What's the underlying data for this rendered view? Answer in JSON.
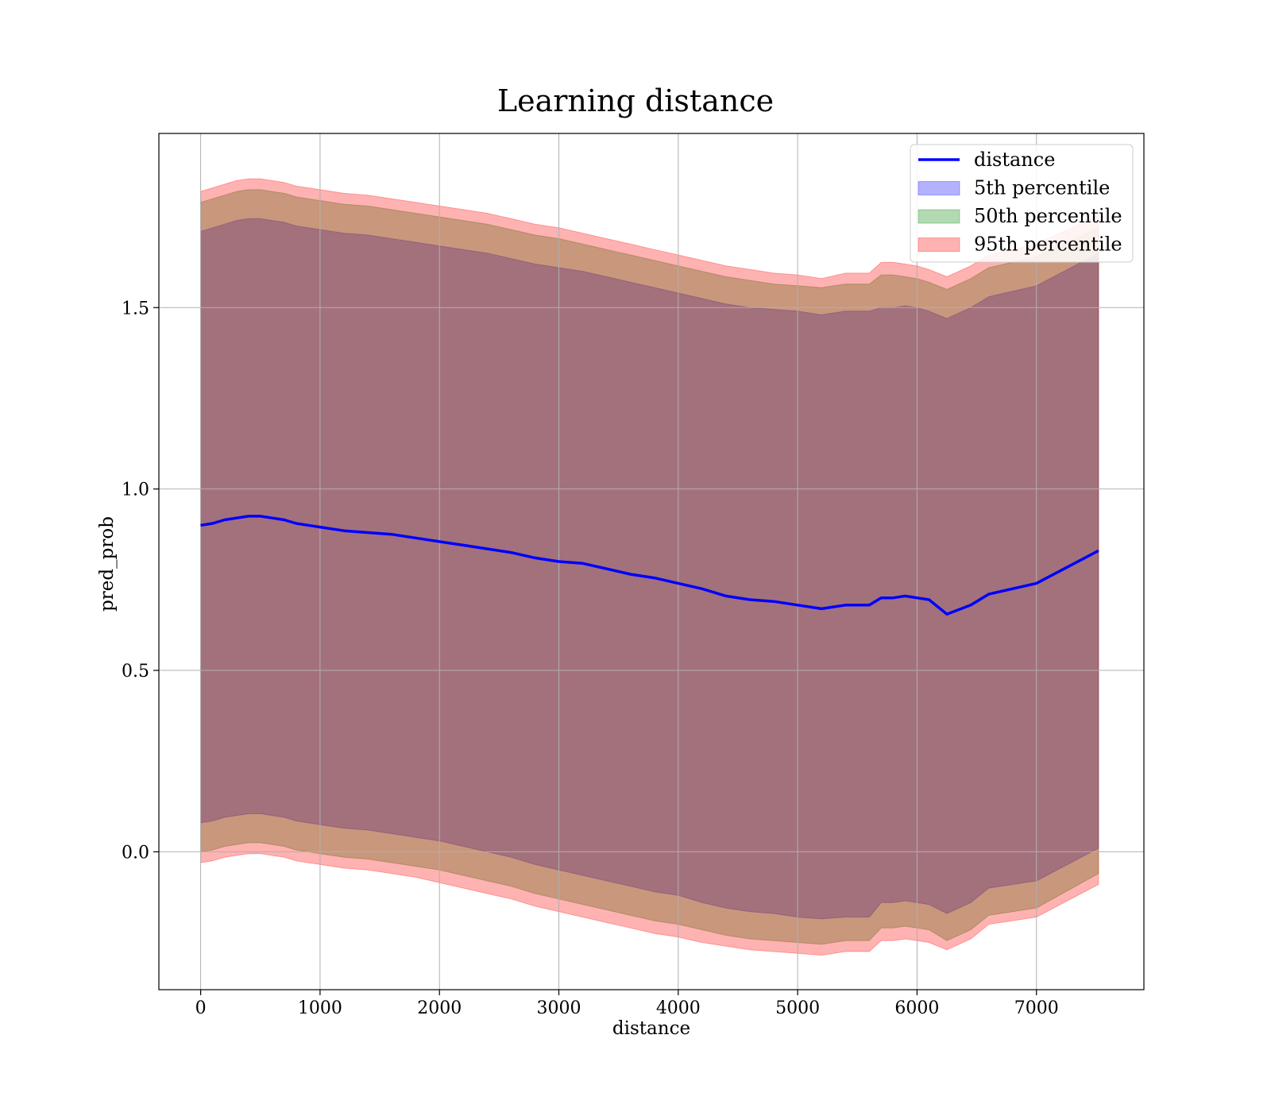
{
  "chart_data": {
    "type": "area",
    "title": "Learning distance",
    "xlabel": "distance",
    "ylabel": "pred_prob",
    "xlim": [
      -350,
      7900
    ],
    "ylim": [
      -0.38,
      1.98
    ],
    "xticks": [
      0,
      1000,
      2000,
      3000,
      4000,
      5000,
      6000,
      7000
    ],
    "xtick_labels": [
      "0",
      "1000",
      "2000",
      "3000",
      "4000",
      "5000",
      "6000",
      "7000"
    ],
    "yticks": [
      0.0,
      0.5,
      1.0,
      1.5
    ],
    "ytick_labels": [
      "0.0",
      "0.5",
      "1.0",
      "1.5"
    ],
    "grid": true,
    "legend_position": "upper right",
    "x": [
      0,
      100,
      200,
      300,
      400,
      500,
      600,
      700,
      800,
      900,
      1000,
      1200,
      1400,
      1600,
      1800,
      2000,
      2200,
      2400,
      2600,
      2800,
      3000,
      3200,
      3400,
      3600,
      3800,
      4000,
      4200,
      4400,
      4600,
      4800,
      5000,
      5200,
      5400,
      5600,
      5700,
      5800,
      5900,
      6000,
      6100,
      6250,
      6450,
      6600,
      7000,
      7520
    ],
    "series": [
      {
        "name": "distance",
        "kind": "line",
        "color": "#0000ff",
        "y": [
          0.9,
          0.905,
          0.915,
          0.92,
          0.925,
          0.925,
          0.92,
          0.915,
          0.905,
          0.9,
          0.895,
          0.885,
          0.88,
          0.875,
          0.865,
          0.855,
          0.845,
          0.835,
          0.825,
          0.81,
          0.8,
          0.795,
          0.78,
          0.765,
          0.755,
          0.74,
          0.725,
          0.705,
          0.695,
          0.69,
          0.68,
          0.67,
          0.68,
          0.68,
          0.7,
          0.7,
          0.705,
          0.7,
          0.695,
          0.655,
          0.68,
          0.71,
          0.74,
          0.83
        ]
      },
      {
        "name": "5th percentile",
        "kind": "band",
        "color": "#0000ff",
        "opacity": 0.3,
        "lower": [
          0.08,
          0.085,
          0.095,
          0.1,
          0.105,
          0.105,
          0.1,
          0.095,
          0.085,
          0.08,
          0.075,
          0.065,
          0.06,
          0.05,
          0.04,
          0.03,
          0.015,
          0.0,
          -0.015,
          -0.035,
          -0.05,
          -0.065,
          -0.08,
          -0.095,
          -0.11,
          -0.12,
          -0.14,
          -0.155,
          -0.165,
          -0.17,
          -0.18,
          -0.185,
          -0.18,
          -0.18,
          -0.14,
          -0.14,
          -0.135,
          -0.14,
          -0.145,
          -0.17,
          -0.14,
          -0.1,
          -0.08,
          0.01
        ],
        "upper": [
          1.71,
          1.72,
          1.73,
          1.74,
          1.745,
          1.745,
          1.74,
          1.735,
          1.725,
          1.72,
          1.715,
          1.705,
          1.7,
          1.69,
          1.68,
          1.67,
          1.66,
          1.65,
          1.635,
          1.62,
          1.61,
          1.6,
          1.585,
          1.57,
          1.555,
          1.54,
          1.525,
          1.51,
          1.5,
          1.495,
          1.49,
          1.48,
          1.49,
          1.49,
          1.5,
          1.5,
          1.505,
          1.5,
          1.49,
          1.47,
          1.5,
          1.53,
          1.56,
          1.65
        ]
      },
      {
        "name": "50th percentile",
        "kind": "band",
        "color": "#008000",
        "opacity": 0.3,
        "lower": [
          0.0,
          0.005,
          0.015,
          0.02,
          0.025,
          0.025,
          0.02,
          0.015,
          0.005,
          0.0,
          -0.005,
          -0.015,
          -0.02,
          -0.03,
          -0.04,
          -0.05,
          -0.065,
          -0.08,
          -0.095,
          -0.115,
          -0.13,
          -0.145,
          -0.16,
          -0.175,
          -0.19,
          -0.2,
          -0.215,
          -0.23,
          -0.24,
          -0.245,
          -0.25,
          -0.255,
          -0.245,
          -0.245,
          -0.21,
          -0.21,
          -0.205,
          -0.21,
          -0.215,
          -0.245,
          -0.215,
          -0.175,
          -0.155,
          -0.06
        ],
        "upper": [
          1.79,
          1.8,
          1.81,
          1.82,
          1.825,
          1.825,
          1.82,
          1.815,
          1.805,
          1.8,
          1.795,
          1.785,
          1.78,
          1.77,
          1.76,
          1.75,
          1.74,
          1.73,
          1.715,
          1.7,
          1.69,
          1.675,
          1.66,
          1.645,
          1.63,
          1.615,
          1.6,
          1.585,
          1.575,
          1.565,
          1.56,
          1.555,
          1.565,
          1.565,
          1.59,
          1.59,
          1.585,
          1.58,
          1.57,
          1.55,
          1.58,
          1.61,
          1.64,
          1.72
        ]
      },
      {
        "name": "95th percentile",
        "kind": "band",
        "color": "#ff0000",
        "opacity": 0.3,
        "lower": [
          -0.03,
          -0.025,
          -0.015,
          -0.01,
          -0.005,
          -0.005,
          -0.01,
          -0.015,
          -0.025,
          -0.03,
          -0.035,
          -0.045,
          -0.05,
          -0.06,
          -0.07,
          -0.085,
          -0.1,
          -0.115,
          -0.13,
          -0.15,
          -0.165,
          -0.18,
          -0.195,
          -0.21,
          -0.225,
          -0.235,
          -0.25,
          -0.26,
          -0.27,
          -0.275,
          -0.28,
          -0.285,
          -0.275,
          -0.275,
          -0.245,
          -0.245,
          -0.24,
          -0.245,
          -0.25,
          -0.27,
          -0.24,
          -0.2,
          -0.18,
          -0.09
        ],
        "upper": [
          1.82,
          1.83,
          1.84,
          1.85,
          1.855,
          1.855,
          1.85,
          1.845,
          1.835,
          1.83,
          1.825,
          1.815,
          1.81,
          1.8,
          1.79,
          1.78,
          1.77,
          1.76,
          1.745,
          1.73,
          1.72,
          1.705,
          1.69,
          1.675,
          1.66,
          1.645,
          1.63,
          1.615,
          1.605,
          1.595,
          1.59,
          1.58,
          1.595,
          1.595,
          1.625,
          1.625,
          1.62,
          1.615,
          1.605,
          1.585,
          1.615,
          1.645,
          1.675,
          1.755
        ]
      }
    ]
  }
}
